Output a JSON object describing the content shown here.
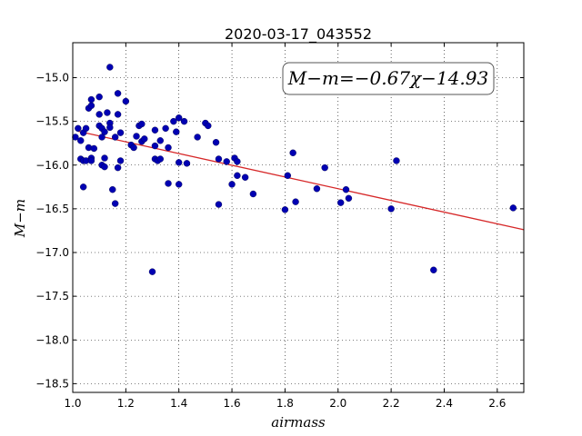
{
  "chart_data": {
    "type": "scatter",
    "title": "2020-03-17_043552",
    "xlabel": "airmass",
    "ylabel": "M−m",
    "xlim": [
      1.0,
      2.7
    ],
    "ylim": [
      -18.6,
      -14.6
    ],
    "y_inverted": true,
    "grid": true,
    "xticks": [
      1.0,
      1.2,
      1.4,
      1.6,
      1.8,
      2.0,
      2.2,
      2.4,
      2.6
    ],
    "xtick_labels": [
      "1.0",
      "1.2",
      "1.4",
      "1.6",
      "1.8",
      "2.0",
      "2.2",
      "2.4",
      "2.6"
    ],
    "yticks": [
      -15.0,
      -15.5,
      -16.0,
      -16.5,
      -17.0,
      -17.5,
      -18.0,
      -18.5
    ],
    "ytick_labels": [
      "−15.0",
      "−15.5",
      "−16.0",
      "−16.5",
      "−17.0",
      "−17.5",
      "−18.0",
      "−18.5"
    ],
    "annotation": "M−m=−0.67χ−14.93",
    "fit": {
      "slope": -0.67,
      "intercept": -14.93,
      "color": "#d62728"
    },
    "point_color": "#0000b3",
    "series": [
      {
        "points": [
          [
            1.01,
            -15.68
          ],
          [
            1.02,
            -15.58
          ],
          [
            1.03,
            -15.72
          ],
          [
            1.03,
            -15.93
          ],
          [
            1.04,
            -15.63
          ],
          [
            1.04,
            -15.95
          ],
          [
            1.04,
            -16.25
          ],
          [
            1.05,
            -15.58
          ],
          [
            1.05,
            -15.95
          ],
          [
            1.06,
            -15.35
          ],
          [
            1.06,
            -15.8
          ],
          [
            1.07,
            -15.32
          ],
          [
            1.07,
            -15.92
          ],
          [
            1.07,
            -15.95
          ],
          [
            1.07,
            -15.25
          ],
          [
            1.08,
            -15.81
          ],
          [
            1.1,
            -15.22
          ],
          [
            1.1,
            -15.42
          ],
          [
            1.1,
            -15.55
          ],
          [
            1.11,
            -15.58
          ],
          [
            1.11,
            -15.68
          ],
          [
            1.11,
            -16.0
          ],
          [
            1.12,
            -15.92
          ],
          [
            1.12,
            -16.02
          ],
          [
            1.12,
            -15.62
          ],
          [
            1.13,
            -15.4
          ],
          [
            1.14,
            -14.88
          ],
          [
            1.14,
            -15.52
          ],
          [
            1.14,
            -15.57
          ],
          [
            1.15,
            -16.28
          ],
          [
            1.16,
            -16.44
          ],
          [
            1.16,
            -15.68
          ],
          [
            1.17,
            -15.18
          ],
          [
            1.17,
            -15.42
          ],
          [
            1.17,
            -16.03
          ],
          [
            1.18,
            -15.95
          ],
          [
            1.18,
            -15.63
          ],
          [
            1.2,
            -15.27
          ],
          [
            1.22,
            -15.77
          ],
          [
            1.23,
            -15.8
          ],
          [
            1.24,
            -15.67
          ],
          [
            1.25,
            -15.55
          ],
          [
            1.26,
            -15.73
          ],
          [
            1.26,
            -15.53
          ],
          [
            1.27,
            -15.7
          ],
          [
            1.3,
            -17.22
          ],
          [
            1.31,
            -15.6
          ],
          [
            1.31,
            -15.78
          ],
          [
            1.31,
            -15.93
          ],
          [
            1.32,
            -15.95
          ],
          [
            1.33,
            -15.72
          ],
          [
            1.33,
            -15.93
          ],
          [
            1.35,
            -15.58
          ],
          [
            1.36,
            -15.8
          ],
          [
            1.36,
            -16.21
          ],
          [
            1.38,
            -15.5
          ],
          [
            1.39,
            -15.62
          ],
          [
            1.4,
            -16.22
          ],
          [
            1.4,
            -15.46
          ],
          [
            1.4,
            -15.97
          ],
          [
            1.42,
            -15.5
          ],
          [
            1.43,
            -15.98
          ],
          [
            1.47,
            -15.68
          ],
          [
            1.5,
            -15.52
          ],
          [
            1.51,
            -15.55
          ],
          [
            1.54,
            -15.74
          ],
          [
            1.55,
            -16.45
          ],
          [
            1.55,
            -15.93
          ],
          [
            1.58,
            -15.96
          ],
          [
            1.6,
            -16.22
          ],
          [
            1.61,
            -15.92
          ],
          [
            1.62,
            -16.12
          ],
          [
            1.62,
            -15.96
          ],
          [
            1.65,
            -16.14
          ],
          [
            1.68,
            -16.33
          ],
          [
            1.8,
            -16.51
          ],
          [
            1.81,
            -16.12
          ],
          [
            1.83,
            -15.86
          ],
          [
            1.84,
            -16.42
          ],
          [
            1.92,
            -16.27
          ],
          [
            1.95,
            -16.03
          ],
          [
            2.01,
            -16.43
          ],
          [
            2.03,
            -16.28
          ],
          [
            2.04,
            -16.38
          ],
          [
            2.2,
            -16.5
          ],
          [
            2.22,
            -15.95
          ],
          [
            2.36,
            -17.2
          ],
          [
            2.66,
            -16.49
          ]
        ]
      }
    ]
  }
}
